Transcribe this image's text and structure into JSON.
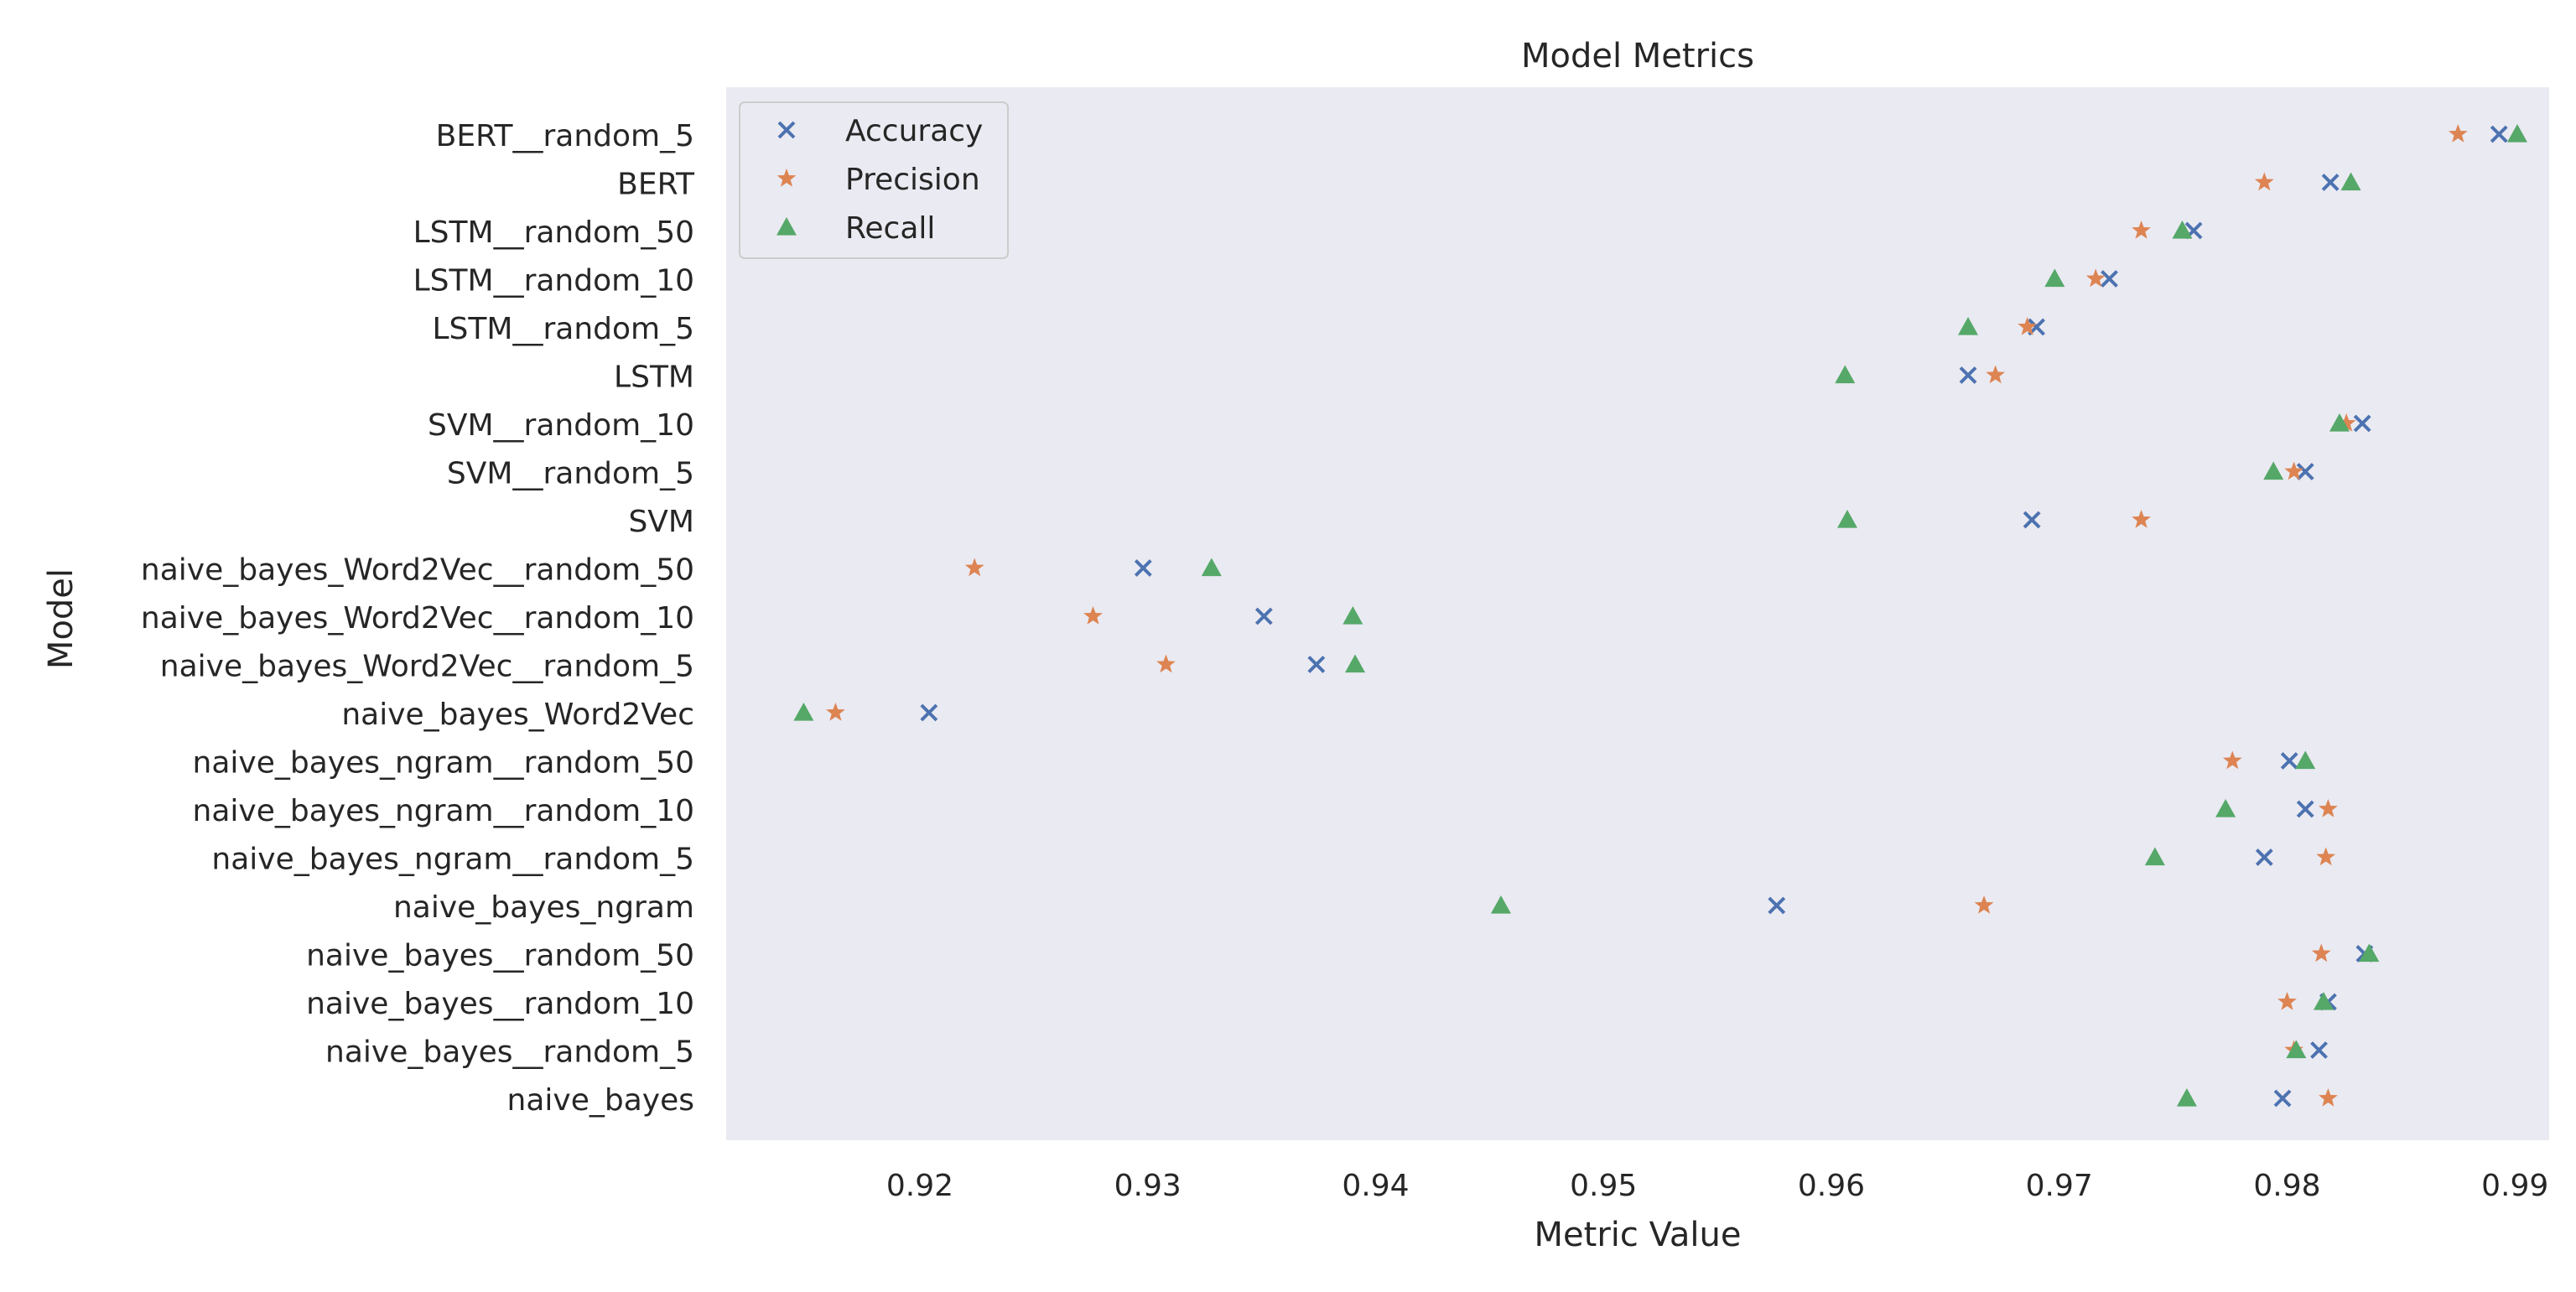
{
  "chart_data": {
    "type": "scatter",
    "title": "Model Metrics",
    "xlabel": "Metric Value",
    "ylabel": "Model",
    "xlim": [
      0.9115,
      0.9915
    ],
    "xticks": [
      0.92,
      0.93,
      0.94,
      0.95,
      0.96,
      0.97,
      0.98,
      0.99
    ],
    "xtick_labels": [
      "0.92",
      "0.93",
      "0.94",
      "0.95",
      "0.96",
      "0.97",
      "0.98",
      "0.99"
    ],
    "grid": false,
    "legend_position": "top-left",
    "categories": [
      "BERT__random_5",
      "BERT",
      "LSTM__random_50",
      "LSTM__random_10",
      "LSTM__random_5",
      "LSTM",
      "SVM__random_10",
      "SVM__random_5",
      "SVM",
      "naive_bayes_Word2Vec__random_50",
      "naive_bayes_Word2Vec__random_10",
      "naive_bayes_Word2Vec__random_5",
      "naive_bayes_Word2Vec",
      "naive_bayes_ngram__random_50",
      "naive_bayes_ngram__random_10",
      "naive_bayes_ngram__random_5",
      "naive_bayes_ngram",
      "naive_bayes__random_50",
      "naive_bayes__random_10",
      "naive_bayes__random_5",
      "naive_bayes"
    ],
    "series": [
      {
        "name": "Accuracy",
        "marker": "x",
        "color": "#4c72b0",
        "values": [
          0.9893,
          0.9819,
          0.9759,
          0.9722,
          0.969,
          0.966,
          0.9833,
          0.9808,
          0.9688,
          0.9298,
          0.9351,
          0.9374,
          0.9204,
          0.9801,
          0.9808,
          0.979,
          0.9576,
          0.9834,
          0.9818,
          0.9814,
          0.9798
        ]
      },
      {
        "name": "Precision",
        "marker": "star",
        "color": "#dd8452",
        "values": [
          0.9875,
          0.979,
          0.9736,
          0.9716,
          0.9686,
          0.9672,
          0.9826,
          0.9803,
          0.9736,
          0.9224,
          0.9276,
          0.9308,
          0.9163,
          0.9776,
          0.9818,
          0.9817,
          0.9667,
          0.9815,
          0.98,
          0.9803,
          0.9818
        ]
      },
      {
        "name": "Recall",
        "marker": "triangle",
        "color": "#55a868",
        "values": [
          0.9901,
          0.9828,
          0.9754,
          0.9698,
          0.966,
          0.9606,
          0.9823,
          0.9794,
          0.9607,
          0.9328,
          0.939,
          0.9391,
          0.9149,
          0.9808,
          0.9773,
          0.9742,
          0.9455,
          0.9836,
          0.9816,
          0.9804,
          0.9756
        ]
      }
    ]
  }
}
